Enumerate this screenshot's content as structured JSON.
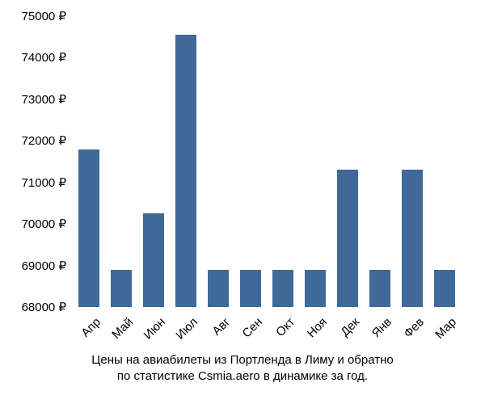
{
  "chart": {
    "type": "bar",
    "background_color": "#ffffff",
    "bar_color": "#3f6999",
    "text_color": "#000000",
    "axis_fontsize": 15,
    "caption_fontsize": 15,
    "ylim": [
      68000,
      75000
    ],
    "ytick_step": 1000,
    "y_ticks": [
      {
        "value": 68000,
        "label": "68000 ₽"
      },
      {
        "value": 69000,
        "label": "69000 ₽"
      },
      {
        "value": 70000,
        "label": "70000 ₽"
      },
      {
        "value": 71000,
        "label": "71000 ₽"
      },
      {
        "value": 72000,
        "label": "72000 ₽"
      },
      {
        "value": 73000,
        "label": "73000 ₽"
      },
      {
        "value": 74000,
        "label": "74000 ₽"
      },
      {
        "value": 75000,
        "label": "75000 ₽"
      }
    ],
    "categories": [
      "Апр",
      "Май",
      "Июн",
      "Июл",
      "Авг",
      "Сен",
      "Окт",
      "Ноя",
      "Дек",
      "Янв",
      "Фев",
      "Мар"
    ],
    "values": [
      71800,
      68900,
      70250,
      74550,
      68900,
      68900,
      68900,
      68900,
      71300,
      68900,
      71300,
      68900
    ],
    "bar_width_ratio": 0.64,
    "caption_line1": "Цены на авиабилеты из Портленда в Лиму и обратно",
    "caption_line2": "по статистике Csmia.aero в динамике за год."
  }
}
